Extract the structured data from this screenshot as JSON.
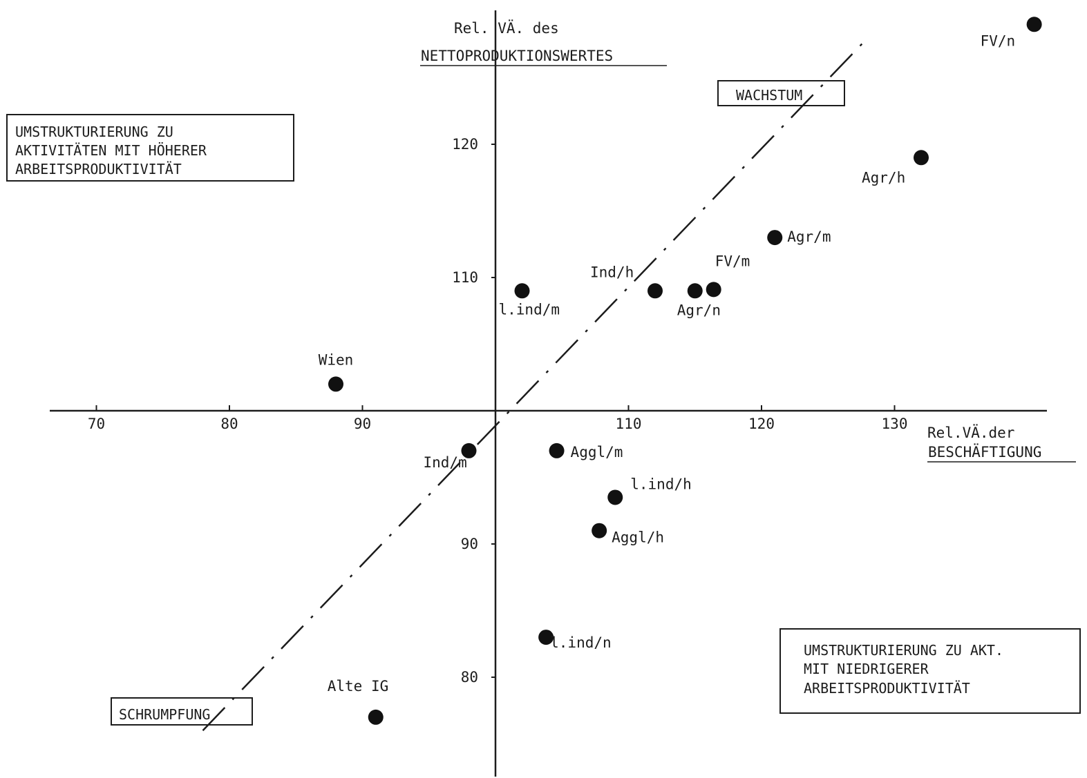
{
  "chart_data": {
    "type": "scatter",
    "x_axis": {
      "label_line1": "Rel.VÄ.der",
      "label_line2": "BESCHÄFTIGUNG",
      "ticks": [
        70,
        80,
        90,
        110,
        120,
        130
      ]
    },
    "y_axis": {
      "label_line1": "Rel. VÄ. des",
      "label_line2": "NETTOPRODUKTIONSWERTES",
      "ticks": [
        80,
        90,
        110,
        120
      ]
    },
    "points": [
      {
        "label": "Wien",
        "x": 88,
        "y": 102
      },
      {
        "label": "l.ind/m",
        "x": 102,
        "y": 109
      },
      {
        "label": "Ind/h",
        "x": 112,
        "y": 109
      },
      {
        "label": "Agr/n",
        "x": 115,
        "y": 109
      },
      {
        "label": "FV/m",
        "x": 116.4,
        "y": 109.1
      },
      {
        "label": "Agr/m",
        "x": 121,
        "y": 113
      },
      {
        "label": "Agr/h",
        "x": 132,
        "y": 119
      },
      {
        "label": "FV/n",
        "x": 140.5,
        "y": 129
      },
      {
        "label": "Ind/m",
        "x": 98,
        "y": 97
      },
      {
        "label": "Aggl/m",
        "x": 104.6,
        "y": 97
      },
      {
        "label": "l.ind/h",
        "x": 109,
        "y": 93.5
      },
      {
        "label": "Aggl/h",
        "x": 107.8,
        "y": 91
      },
      {
        "label": "l.ind/n",
        "x": 103.8,
        "y": 83
      },
      {
        "label": "Alte IG",
        "x": 91,
        "y": 77
      }
    ],
    "reference_line": {
      "from": [
        78,
        76
      ],
      "to": [
        128,
        128
      ]
    },
    "quadrant_boxes": {
      "wachstum": "WACHSTUM",
      "schrumpfung": "SCHRUMPFUNG",
      "upper_left": [
        "UMSTRUKTURIERUNG ZU",
        "AKTIVITÄTEN MIT HÖHERER",
        "ARBEITSPRODUKTIVITÄT"
      ],
      "lower_right": [
        "UMSTRUKTURIERUNG ZU AKT.",
        "MIT NIEDRIGERER",
        "ARBEITSPRODUKTIVITÄT"
      ]
    }
  }
}
